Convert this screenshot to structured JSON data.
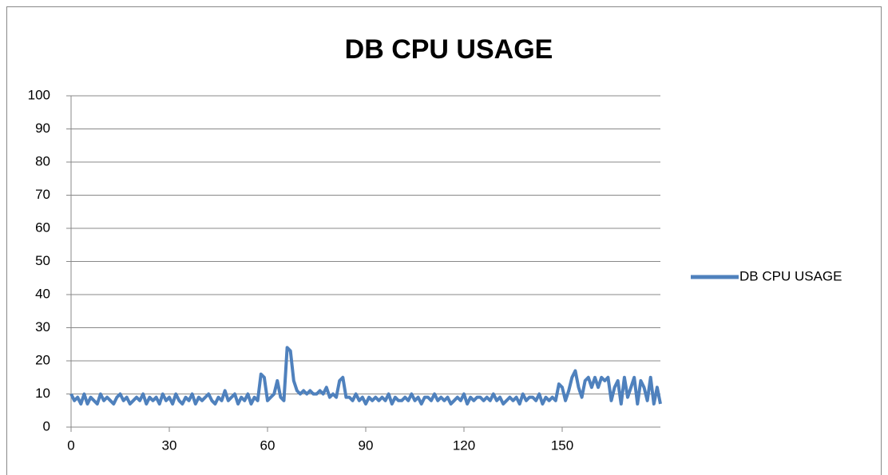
{
  "chart_data": {
    "type": "line",
    "title": "DB CPU USAGE",
    "x": [
      0,
      1,
      2,
      3,
      4,
      5,
      6,
      7,
      8,
      9,
      10,
      11,
      12,
      13,
      14,
      15,
      16,
      17,
      18,
      19,
      20,
      21,
      22,
      23,
      24,
      25,
      26,
      27,
      28,
      29,
      30,
      31,
      32,
      33,
      34,
      35,
      36,
      37,
      38,
      39,
      40,
      41,
      42,
      43,
      44,
      45,
      46,
      47,
      48,
      49,
      50,
      51,
      52,
      53,
      54,
      55,
      56,
      57,
      58,
      59,
      60,
      61,
      62,
      63,
      64,
      65,
      66,
      67,
      68,
      69,
      70,
      71,
      72,
      73,
      74,
      75,
      76,
      77,
      78,
      79,
      80,
      81,
      82,
      83,
      84,
      85,
      86,
      87,
      88,
      89,
      90,
      91,
      92,
      93,
      94,
      95,
      96,
      97,
      98,
      99,
      100,
      101,
      102,
      103,
      104,
      105,
      106,
      107,
      108,
      109,
      110,
      111,
      112,
      113,
      114,
      115,
      116,
      117,
      118,
      119,
      120,
      121,
      122,
      123,
      124,
      125,
      126,
      127,
      128,
      129,
      130,
      131,
      132,
      133,
      134,
      135,
      136,
      137,
      138,
      139,
      140,
      141,
      142,
      143,
      144,
      145,
      146,
      147,
      148,
      149,
      150,
      151,
      152,
      153,
      154,
      155,
      156,
      157,
      158,
      159,
      160,
      161,
      162,
      163,
      164,
      165,
      166,
      167,
      168,
      169,
      170,
      171,
      172,
      173,
      174,
      175,
      176,
      177,
      178,
      179,
      180
    ],
    "series": [
      {
        "name": "DB CPU USAGE",
        "color": "#4f81bd",
        "values": [
          10,
          8,
          9,
          7,
          10,
          7,
          9,
          8,
          7,
          10,
          8,
          9,
          8,
          7,
          9,
          10,
          8,
          9,
          7,
          8,
          9,
          8,
          10,
          7,
          9,
          8,
          9,
          7,
          10,
          8,
          9,
          7,
          10,
          8,
          7,
          9,
          8,
          10,
          7,
          9,
          8,
          9,
          10,
          8,
          7,
          9,
          8,
          11,
          8,
          9,
          10,
          7,
          9,
          8,
          10,
          7,
          9,
          8,
          16,
          15,
          8,
          9,
          10,
          14,
          9,
          8,
          24,
          23,
          14,
          11,
          10,
          11,
          10,
          11,
          10,
          10,
          11,
          10,
          12,
          9,
          10,
          9,
          14,
          15,
          9,
          9,
          8,
          10,
          8,
          9,
          7,
          9,
          8,
          9,
          8,
          9,
          8,
          10,
          7,
          9,
          8,
          8,
          9,
          8,
          10,
          8,
          9,
          7,
          9,
          9,
          8,
          10,
          8,
          9,
          8,
          9,
          7,
          8,
          9,
          8,
          10,
          7,
          9,
          8,
          9,
          9,
          8,
          9,
          8,
          10,
          8,
          9,
          7,
          8,
          9,
          8,
          9,
          7,
          10,
          8,
          9,
          9,
          8,
          10,
          7,
          9,
          8,
          9,
          8,
          13,
          12,
          8,
          11,
          15,
          17,
          12,
          9,
          14,
          15,
          12,
          15,
          12,
          15,
          14,
          15,
          8,
          12,
          14,
          7,
          15,
          9,
          12,
          15,
          7,
          14,
          12,
          8,
          15,
          7,
          12,
          7
        ]
      }
    ],
    "xlim": [
      0,
      180
    ],
    "xticks": [
      0,
      30,
      60,
      90,
      120,
      150
    ],
    "ylim": [
      0,
      100
    ],
    "yticks": [
      0,
      10,
      20,
      30,
      40,
      50,
      60,
      70,
      80,
      90,
      100
    ],
    "grid": true,
    "legend": "right"
  }
}
